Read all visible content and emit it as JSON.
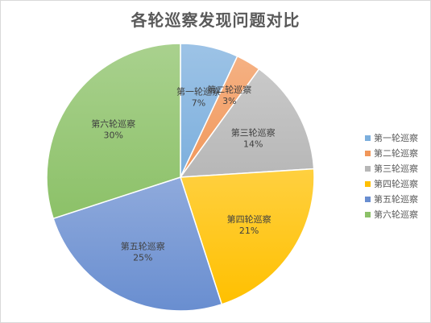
{
  "chart_data": {
    "type": "pie",
    "title": "各轮巡察发现问题对比",
    "categories": [
      "第一轮巡察",
      "第二轮巡察",
      "第三轮巡察",
      "第四轮巡察",
      "第五轮巡察",
      "第六轮巡察"
    ],
    "values": [
      7,
      3,
      14,
      21,
      25,
      30
    ],
    "value_labels": [
      "7%",
      "3%",
      "14%",
      "21%",
      "25%",
      "30%"
    ],
    "colors": [
      "#7cafdd",
      "#f1975a",
      "#b7b7b7",
      "#ffc000",
      "#698ed0",
      "#8cc168"
    ],
    "legend_position": "right"
  }
}
